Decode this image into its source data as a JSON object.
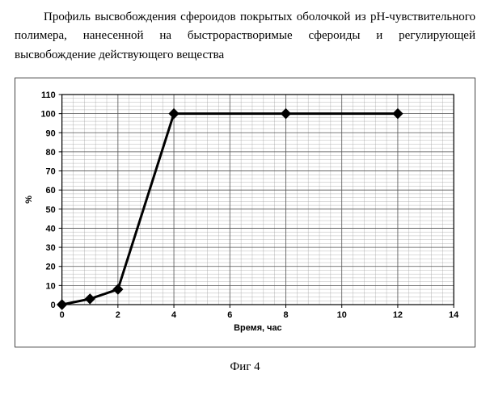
{
  "caption": {
    "text": "Профиль высвобождения сфероидов покрытых оболочкой из pH-чувствительного полимера, нанесенной на быстрорастворимые сфероиды и регулирующей высвобождение действующего вещества"
  },
  "chart": {
    "type": "line",
    "x": [
      0,
      1,
      2,
      4,
      8,
      12
    ],
    "y": [
      0,
      3,
      8,
      100,
      100,
      100
    ],
    "line_color": "#000000",
    "line_width": 3,
    "marker_style": "diamond",
    "marker_size": 6,
    "marker_color": "#000000",
    "xlim": [
      0,
      14
    ],
    "ylim": [
      0,
      110
    ],
    "xtick_step": 2,
    "ytick_step": 10,
    "xlabel": "Время, час",
    "ylabel": "%",
    "tick_fontsize": 11,
    "label_fontsize": 11,
    "label_fontweight": "bold",
    "background_color": "#ffffff",
    "grid_major_color": "#555555",
    "grid_minor_color": "#999999",
    "grid_major_width": 0.8,
    "grid_minor_width": 0.35,
    "minor_per_major_x": 5,
    "minor_per_major_y": 5,
    "plot_border": true
  },
  "figure_label": "Фиг 4"
}
